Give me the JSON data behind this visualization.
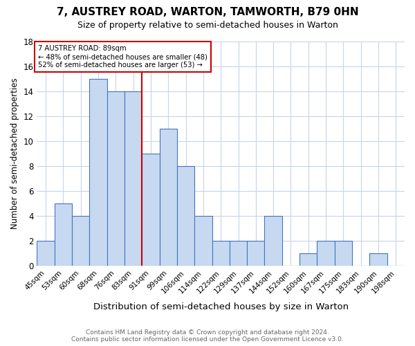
{
  "title": "7, AUSTREY ROAD, WARTON, TAMWORTH, B79 0HN",
  "subtitle": "Size of property relative to semi-detached houses in Warton",
  "xlabel": "Distribution of semi-detached houses by size in Warton",
  "ylabel": "Number of semi-detached properties",
  "categories": [
    "45sqm",
    "53sqm",
    "60sqm",
    "68sqm",
    "76sqm",
    "83sqm",
    "91sqm",
    "99sqm",
    "106sqm",
    "114sqm",
    "122sqm",
    "129sqm",
    "137sqm",
    "144sqm",
    "152sqm",
    "160sqm",
    "167sqm",
    "175sqm",
    "183sqm",
    "190sqm",
    "198sqm"
  ],
  "values": [
    2,
    5,
    4,
    15,
    14,
    14,
    9,
    11,
    8,
    4,
    2,
    2,
    2,
    4,
    0,
    1,
    2,
    2,
    0,
    1,
    0
  ],
  "bar_color": "#c6d9f0",
  "bar_edge_color": "#4472c4",
  "property_sqm": 89,
  "pct_smaller": 48,
  "n_smaller": 48,
  "pct_larger": 52,
  "n_larger": 53,
  "annotation_text_line1": "7 AUSTREY ROAD: 89sqm",
  "annotation_text_line2": "← 48% of semi-detached houses are smaller (48)",
  "annotation_text_line3": "52% of semi-detached houses are larger (53) →",
  "ylim": [
    0,
    18
  ],
  "yticks": [
    0,
    2,
    4,
    6,
    8,
    10,
    12,
    14,
    16,
    18
  ],
  "red_line_color": "#cc0000",
  "red_line_x": 6.5,
  "footer_line1": "Contains HM Land Registry data © Crown copyright and database right 2024.",
  "footer_line2": "Contains public sector information licensed under the Open Government Licence v3.0.",
  "background_color": "#ffffff",
  "grid_color": "#c8d4e8"
}
